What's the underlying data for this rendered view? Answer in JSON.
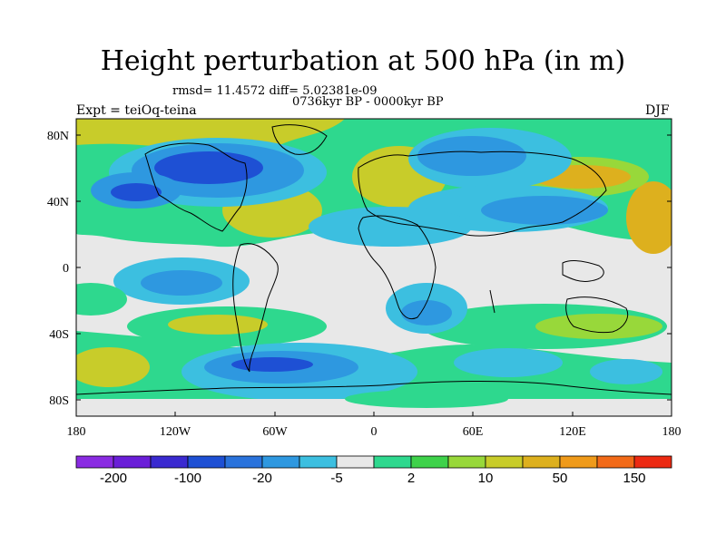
{
  "title": "Height perturbation at 500 hPa (in m)",
  "stats_text": "rmsd= 11.4572  diff= 5.02381e-09",
  "period_text": "0736kyr BP - 0000kyr BP",
  "experiment_text": "Expt = teiOq-teina",
  "season_text": "DJF",
  "map": {
    "lat_labels": [
      "80N",
      "40N",
      "0",
      "40S",
      "80S"
    ],
    "lon_labels": [
      "180",
      "120W",
      "60W",
      "0",
      "60E",
      "120E",
      "180"
    ]
  },
  "colorbar": {
    "colors": [
      "#8a2be2",
      "#6a1ed8",
      "#3a2ad0",
      "#1e50d4",
      "#2a73dc",
      "#2e98e0",
      "#3cbfe0",
      "#e8e8e8",
      "#2ed88e",
      "#3ed24a",
      "#98d83a",
      "#c8cc2a",
      "#ddb01e",
      "#ef9a1a",
      "#f26a18",
      "#ec2a12"
    ],
    "labels": [
      "-200",
      "-100",
      "-20",
      "-5",
      "2",
      "10",
      "50",
      "150"
    ]
  }
}
